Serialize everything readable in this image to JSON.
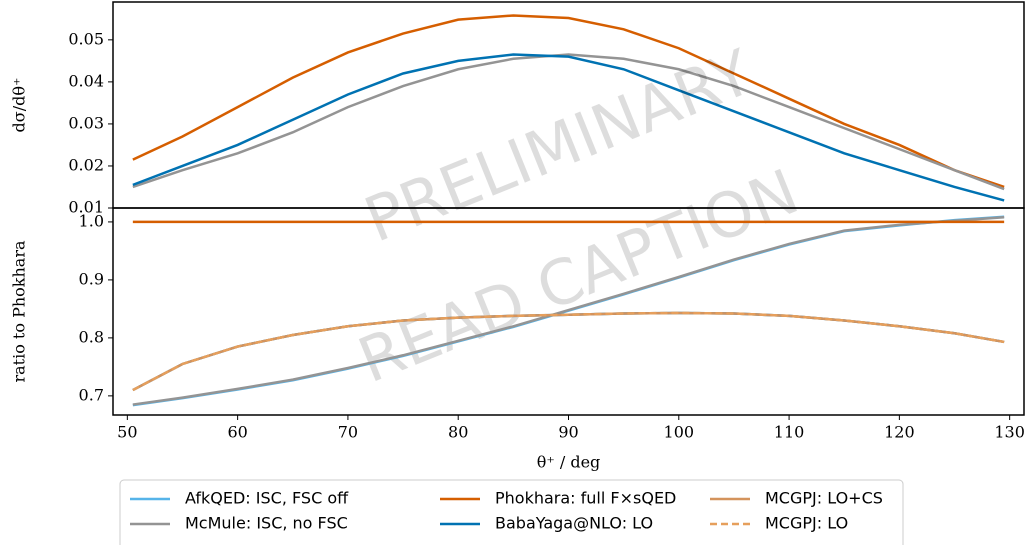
{
  "chart_data": [
    {
      "type": "line",
      "ylabel": "dσ/dθ⁺",
      "annotations": [
        "PRELIMINARY",
        "READ CAPTION"
      ],
      "x": [
        50.5,
        55,
        60,
        65,
        70,
        75,
        80,
        85,
        90,
        95,
        100,
        105,
        110,
        115,
        120,
        125,
        129.5
      ],
      "xlim": [
        48.7,
        131.3
      ],
      "ylim": [
        0.01,
        0.059
      ],
      "yticks": [
        0.01,
        0.02,
        0.03,
        0.04,
        0.05
      ],
      "series": [
        {
          "name": "Phokhara: full F×sQED",
          "color": "#d55e00",
          "values": [
            0.0215,
            0.027,
            0.034,
            0.041,
            0.047,
            0.0515,
            0.0548,
            0.0558,
            0.0552,
            0.0525,
            0.048,
            0.042,
            0.036,
            0.03,
            0.025,
            0.019,
            0.015
          ]
        },
        {
          "name": "McMule: ISC, no FSC",
          "color": "#949494",
          "values": [
            0.015,
            0.019,
            0.023,
            0.028,
            0.034,
            0.039,
            0.043,
            0.0455,
            0.0465,
            0.0455,
            0.043,
            0.039,
            0.034,
            0.029,
            0.024,
            0.019,
            0.0145
          ]
        },
        {
          "name": "BabaYaga@NLO: LO",
          "color": "#0072b2",
          "values": [
            0.0155,
            0.02,
            0.025,
            0.031,
            0.037,
            0.042,
            0.045,
            0.0465,
            0.046,
            0.043,
            0.038,
            0.033,
            0.028,
            0.023,
            0.019,
            0.015,
            0.0118
          ]
        }
      ]
    },
    {
      "type": "line",
      "ylabel": "ratio to Phokhara",
      "xlabel": "θ⁺ / deg",
      "x": [
        50.5,
        55,
        60,
        65,
        70,
        75,
        80,
        85,
        90,
        95,
        100,
        105,
        110,
        115,
        120,
        125,
        129.5
      ],
      "xlim": [
        48.7,
        131.3
      ],
      "ylim": [
        0.667,
        1.024
      ],
      "xticks": [
        50,
        60,
        70,
        80,
        90,
        100,
        110,
        120,
        130
      ],
      "yticks": [
        0.7,
        0.8,
        0.9,
        {
          "value": 1,
          "label": "1.0"
        }
      ],
      "legend": "bottom",
      "series": [
        {
          "name": "AfkQED: ISC, FSC off",
          "color": "#56b4e9",
          "values": [
            0.684,
            0.696,
            0.711,
            0.727,
            0.747,
            0.769,
            0.794,
            0.819,
            0.847,
            0.875,
            0.904,
            0.934,
            0.961,
            0.984,
            0.994,
            1.003,
            1.009
          ]
        },
        {
          "name": "McMule: ISC, no FSC",
          "color": "#949494",
          "values": [
            0.685,
            0.697,
            0.712,
            0.728,
            0.748,
            0.77,
            0.795,
            0.82,
            0.848,
            0.876,
            0.905,
            0.935,
            0.962,
            0.985,
            0.995,
            1.002,
            1.008
          ]
        },
        {
          "name": "Phokhara: full F×sQED",
          "color": "#d55e00",
          "values": [
            1,
            1,
            1,
            1,
            1,
            1,
            1,
            1,
            1,
            1,
            1,
            1,
            1,
            1,
            1,
            1,
            1
          ]
        },
        {
          "name": "BabaYaga@NLO: LO",
          "color": "#0072b2",
          "values": [
            0.71,
            0.755,
            0.785,
            0.805,
            0.82,
            0.83,
            0.835,
            0.838,
            0.84,
            0.842,
            0.843,
            0.842,
            0.838,
            0.83,
            0.82,
            0.808,
            0.793
          ]
        },
        {
          "name": "MCGPJ: LO+CS",
          "color": "#d4935c",
          "values": [
            0.71,
            0.755,
            0.785,
            0.805,
            0.82,
            0.83,
            0.835,
            0.838,
            0.84,
            0.842,
            0.843,
            0.842,
            0.838,
            0.83,
            0.82,
            0.808,
            0.793
          ]
        },
        {
          "name": "MCGPJ: LO",
          "color": "#e69f5c",
          "dashed": true,
          "values": [
            0.71,
            0.755,
            0.785,
            0.805,
            0.82,
            0.83,
            0.835,
            0.838,
            0.84,
            0.842,
            0.843,
            0.842,
            0.838,
            0.83,
            0.82,
            0.808,
            0.793
          ]
        }
      ]
    }
  ]
}
